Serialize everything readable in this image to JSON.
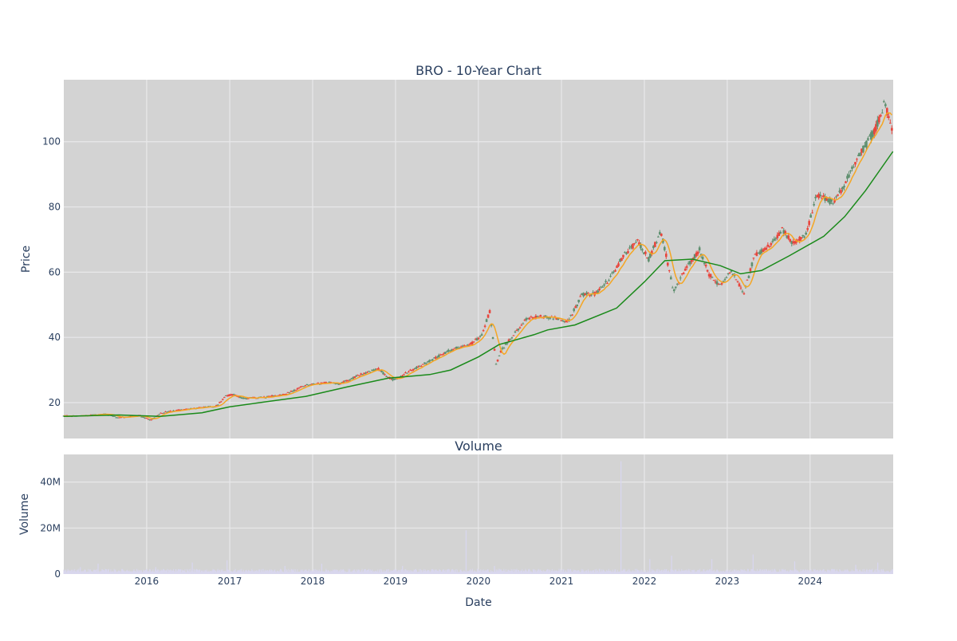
{
  "colors": {
    "plot_bg": "#d3d3d3",
    "grid": "#e8e8ea",
    "candle_up": "#5f8f6f",
    "candle_down": "#e8453c",
    "ma_short": "#f5a623",
    "ma_long": "#1a8a1a",
    "volume": "#d8d6ee",
    "text": "#2a3f5f"
  },
  "chart_data": [
    {
      "type": "candlestick",
      "title": "BRO - 10-Year Chart",
      "ylabel": "Price",
      "ylim": [
        9,
        119
      ],
      "xlim": [
        "2015-01-01",
        "2025-01-01"
      ],
      "x_tick_labels": [
        "2016",
        "2017",
        "2018",
        "2019",
        "2020",
        "2021",
        "2022",
        "2023",
        "2024"
      ],
      "y_ticks": [
        20,
        40,
        60,
        80,
        100
      ],
      "grid": true,
      "price_path": [
        [
          "2015-01-01",
          15.9
        ],
        [
          "2015-04-01",
          16.0
        ],
        [
          "2015-07-01",
          16.5
        ],
        [
          "2015-09-01",
          15.4
        ],
        [
          "2015-12-01",
          16.0
        ],
        [
          "2016-01-20",
          14.6
        ],
        [
          "2016-03-01",
          16.8
        ],
        [
          "2016-06-01",
          17.8
        ],
        [
          "2016-09-01",
          18.5
        ],
        [
          "2016-11-01",
          18.9
        ],
        [
          "2016-12-15",
          22.0
        ],
        [
          "2017-01-15",
          22.5
        ],
        [
          "2017-03-01",
          21.3
        ],
        [
          "2017-06-01",
          21.6
        ],
        [
          "2017-09-01",
          22.6
        ],
        [
          "2017-12-01",
          25.3
        ],
        [
          "2018-03-01",
          26.1
        ],
        [
          "2018-05-01",
          25.8
        ],
        [
          "2018-08-01",
          28.6
        ],
        [
          "2018-10-15",
          30.4
        ],
        [
          "2018-11-15",
          28.6
        ],
        [
          "2018-12-25",
          26.9
        ],
        [
          "2019-03-01",
          29.5
        ],
        [
          "2019-06-01",
          32.8
        ],
        [
          "2019-09-01",
          36.2
        ],
        [
          "2019-12-01",
          38.0
        ],
        [
          "2020-01-15",
          40.5
        ],
        [
          "2020-02-20",
          48.0
        ],
        [
          "2020-03-20",
          31.5
        ],
        [
          "2020-04-10",
          36.0
        ],
        [
          "2020-06-01",
          40.5
        ],
        [
          "2020-08-01",
          45.8
        ],
        [
          "2020-10-01",
          46.5
        ],
        [
          "2020-12-01",
          46.0
        ],
        [
          "2021-02-01",
          45.0
        ],
        [
          "2021-04-01",
          53.0
        ],
        [
          "2021-06-01",
          53.5
        ],
        [
          "2021-08-01",
          58.0
        ],
        [
          "2021-10-01",
          65.0
        ],
        [
          "2021-12-01",
          69.5
        ],
        [
          "2022-01-20",
          64.0
        ],
        [
          "2022-03-15",
          72.5
        ],
        [
          "2022-05-10",
          54.0
        ],
        [
          "2022-07-01",
          61.0
        ],
        [
          "2022-09-01",
          67.0
        ],
        [
          "2022-10-15",
          59.0
        ],
        [
          "2022-12-01",
          56.0
        ],
        [
          "2023-01-20",
          60.5
        ],
        [
          "2023-03-15",
          53.5
        ],
        [
          "2023-05-01",
          65.0
        ],
        [
          "2023-07-01",
          68.0
        ],
        [
          "2023-09-01",
          73.0
        ],
        [
          "2023-10-15",
          69.0
        ],
        [
          "2023-12-15",
          71.5
        ],
        [
          "2024-02-01",
          84.0
        ],
        [
          "2024-04-15",
          81.0
        ],
        [
          "2024-06-15",
          89.0
        ],
        [
          "2024-08-15",
          97.0
        ],
        [
          "2024-10-15",
          104.0
        ],
        [
          "2024-11-25",
          112.0
        ],
        [
          "2024-12-31",
          102.0
        ]
      ],
      "moving_average_long": [
        [
          "2015-01-01",
          15.8
        ],
        [
          "2015-09-01",
          16.2
        ],
        [
          "2016-03-01",
          15.8
        ],
        [
          "2016-09-01",
          16.9
        ],
        [
          "2017-01-01",
          18.7
        ],
        [
          "2017-06-01",
          20.2
        ],
        [
          "2017-12-01",
          21.9
        ],
        [
          "2018-06-01",
          24.8
        ],
        [
          "2018-12-01",
          27.5
        ],
        [
          "2019-06-01",
          28.6
        ],
        [
          "2019-09-01",
          30.0
        ],
        [
          "2020-01-01",
          34.0
        ],
        [
          "2020-04-01",
          37.8
        ],
        [
          "2020-09-01",
          40.8
        ],
        [
          "2020-11-01",
          42.3
        ],
        [
          "2021-03-01",
          43.8
        ],
        [
          "2021-09-01",
          49.0
        ],
        [
          "2022-01-01",
          57.0
        ],
        [
          "2022-04-01",
          63.5
        ],
        [
          "2022-08-01",
          64.0
        ],
        [
          "2022-12-01",
          62.0
        ],
        [
          "2023-03-01",
          59.5
        ],
        [
          "2023-06-01",
          60.5
        ],
        [
          "2023-10-01",
          65.0
        ],
        [
          "2024-03-01",
          71.0
        ],
        [
          "2024-06-01",
          77.0
        ],
        [
          "2024-09-01",
          85.0
        ],
        [
          "2024-12-31",
          97.0
        ]
      ]
    },
    {
      "type": "bar",
      "title": "Volume",
      "xlabel": "Date",
      "ylabel": "Volume",
      "ylim": [
        0,
        52000000
      ],
      "y_tick_labels": [
        "0",
        "20M",
        "40M"
      ],
      "baseline_volume": 1600000,
      "spikes": [
        [
          "2015-03-15",
          3000000
        ],
        [
          "2015-06-01",
          4500000
        ],
        [
          "2016-02-10",
          3000000
        ],
        [
          "2016-07-20",
          5000000
        ],
        [
          "2016-12-20",
          6000000
        ],
        [
          "2017-09-01",
          3500000
        ],
        [
          "2018-02-10",
          4500000
        ],
        [
          "2019-02-01",
          3500000
        ],
        [
          "2019-11-08",
          19000000
        ],
        [
          "2020-03-12",
          3500000
        ],
        [
          "2021-09-20",
          49000000
        ],
        [
          "2022-01-25",
          6500000
        ],
        [
          "2022-05-01",
          8000000
        ],
        [
          "2022-10-25",
          6500000
        ],
        [
          "2023-04-25",
          8500000
        ],
        [
          "2023-10-25",
          5500000
        ],
        [
          "2024-07-20",
          4000000
        ],
        [
          "2024-10-25",
          5000000
        ]
      ]
    }
  ]
}
